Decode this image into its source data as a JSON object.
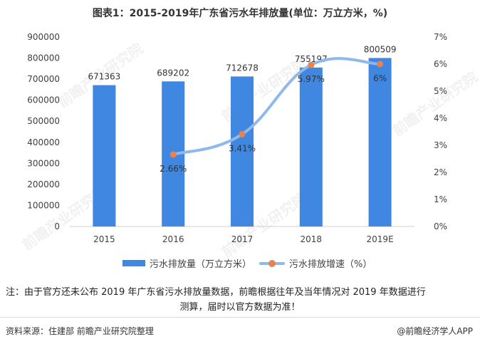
{
  "title": "图表1：2015-2019年广东省污水年排放量(单位：万立方米，%)",
  "chart_data": {
    "type": "bar",
    "categories": [
      "2015",
      "2016",
      "2017",
      "2018",
      "2019E"
    ],
    "series": [
      {
        "name": "污水排放量（万立方米）",
        "type": "bar",
        "axis": "left",
        "values": [
          671363,
          689202,
          712678,
          755197,
          800509
        ],
        "labels": [
          "671363",
          "689202",
          "712678",
          "755197",
          "800509"
        ]
      },
      {
        "name": "污水排放增速（%）",
        "type": "line",
        "axis": "right",
        "values": [
          null,
          2.66,
          3.41,
          5.97,
          6.0
        ],
        "labels": [
          "",
          "2.66%",
          "3.41%",
          "5.97%",
          "6%"
        ]
      }
    ],
    "y_left": {
      "min": 0,
      "max": 900000,
      "step": 100000,
      "ticks": [
        "0",
        "100000",
        "200000",
        "300000",
        "400000",
        "500000",
        "600000",
        "700000",
        "800000",
        "900000"
      ]
    },
    "y_right": {
      "min": 0,
      "max": 7,
      "step": 1,
      "ticks": [
        "0%",
        "1%",
        "2%",
        "3%",
        "4%",
        "5%",
        "6%",
        "7%"
      ]
    },
    "grid": false,
    "legend_position": "bottom",
    "colors": {
      "bar": "#3f87e0",
      "line": "#8fb9ea",
      "marker": "#e8834f"
    }
  },
  "note": {
    "line1": "注：由于官方还未公布 2019 年广东省污水排放量数据，前瞻根据往年及当年情况对 2019 年数据进行",
    "line2": "测算，届时以官方数据为准！"
  },
  "source": "资料来源：住建部 前瞻产业研究院整理",
  "brand": "@前瞻经济学人APP",
  "watermark": "前瞻产业研究院"
}
